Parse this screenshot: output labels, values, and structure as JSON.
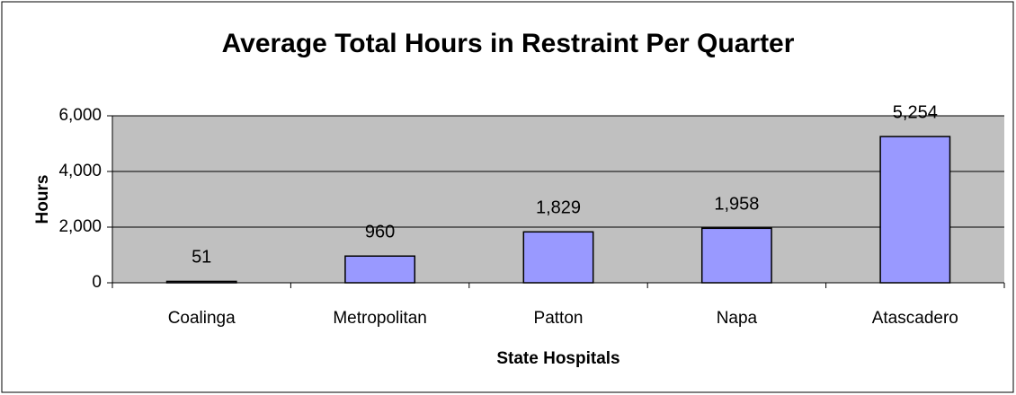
{
  "chart_data": {
    "type": "bar",
    "title": "Average Total Hours in Restraint Per Quarter",
    "x_label": "State Hospitals",
    "y_label": "Hours",
    "categories": [
      "Coalinga",
      "Metropolitan",
      "Patton",
      "Napa",
      "Atascadero"
    ],
    "values": [
      51,
      960,
      1829,
      1958,
      5254
    ],
    "value_labels": [
      "51",
      "960",
      "1,829",
      "1,958",
      "5,254"
    ],
    "color": "#9999ff",
    "ylim": [
      0,
      6000
    ],
    "yticks": [
      0,
      {
        "value": 2000,
        "label": "2,000"
      },
      {
        "value": 4000,
        "label": "4,000"
      },
      {
        "value": 6000,
        "label": "6,000"
      }
    ],
    "grid": true
  }
}
